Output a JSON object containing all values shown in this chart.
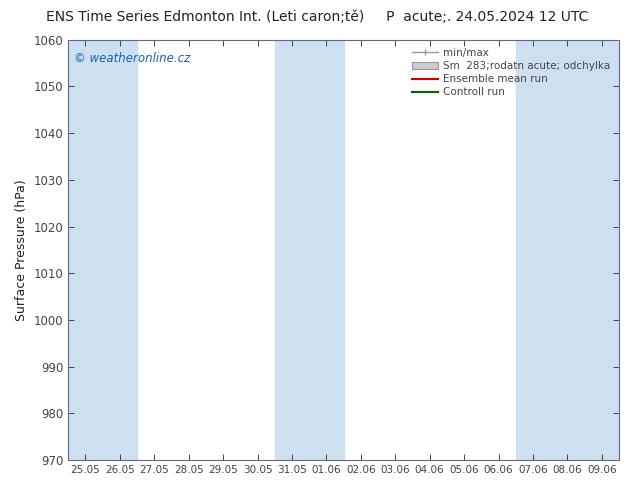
{
  "title_left": "ENS Time Series Edmonton Int. (Leti caron;tě)",
  "title_right": "P  acute;. 24.05.2024 12 UTC",
  "ylabel": "Surface Pressure (hPa)",
  "watermark": "© weatheronline.cz",
  "ylim": [
    970,
    1060
  ],
  "yticks": [
    970,
    980,
    990,
    1000,
    1010,
    1020,
    1030,
    1040,
    1050,
    1060
  ],
  "xtick_labels": [
    "25.05",
    "26.05",
    "27.05",
    "28.05",
    "29.05",
    "30.05",
    "31.05",
    "01.06",
    "02.06",
    "03.06",
    "04.06",
    "05.06",
    "06.06",
    "07.06",
    "08.06",
    "09.06"
  ],
  "band_color": "#cde0f0",
  "band_indices": [
    0,
    1,
    6,
    7,
    13,
    14,
    15
  ],
  "legend_labels": [
    "min/max",
    "Sm  283;rodatn acute; odchylka",
    "Ensemble mean run",
    "Controll run"
  ],
  "legend_fill_colors": [
    "#aaaaaa",
    "#cccccc"
  ],
  "legend_line_colors": [
    "#cc0000",
    "#006600"
  ],
  "bg_color": "#ffffff",
  "plot_bg_color": "#ffffff",
  "tick_color": "#444444",
  "title_color": "#222222",
  "watermark_color": "#1a5fa8",
  "border_color": "#666688"
}
